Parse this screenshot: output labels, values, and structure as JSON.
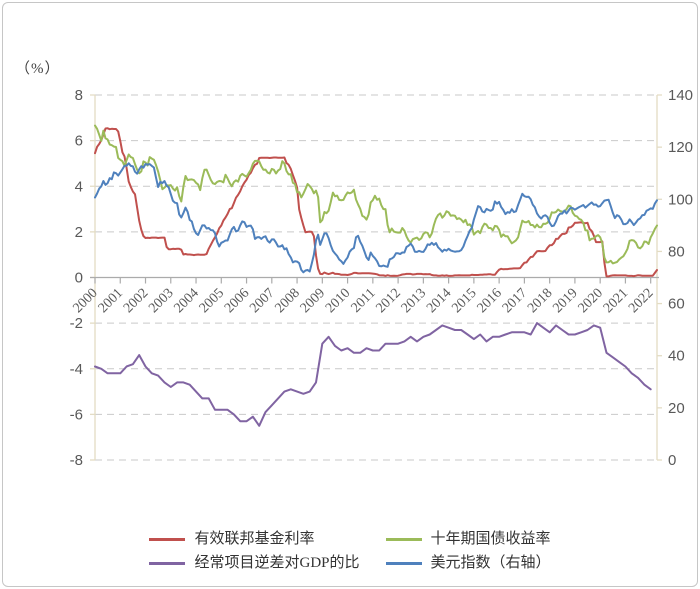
{
  "unit_label": "（%）",
  "chart_data": {
    "type": "line",
    "title": "",
    "ylabel_left": "（%）",
    "grid": "dashed-horizontal",
    "legend_position": "bottom",
    "left_axis": {
      "min": -8,
      "max": 8,
      "ticks": [
        8,
        6,
        4,
        2,
        0,
        -2,
        -4,
        -6,
        -8
      ]
    },
    "right_axis": {
      "min": 0,
      "max": 140,
      "ticks": [
        140,
        120,
        100,
        80,
        60,
        40,
        20,
        0
      ]
    },
    "x_axis": {
      "start_year": 2000,
      "end_year": 2022.25,
      "tick_labels": [
        "2000",
        "2001",
        "2002",
        "2003",
        "2004",
        "2005",
        "2006",
        "2007",
        "2008",
        "2009",
        "2010",
        "2011",
        "2012",
        "2013",
        "2014",
        "2015",
        "2016",
        "2017",
        "2018",
        "2019",
        "2020",
        "2021",
        "2022"
      ]
    },
    "colors": {
      "grid": "#c9c9c9",
      "axis_cream": "#e3dcc4",
      "axis_gray": "#ababab",
      "text": "#595959"
    },
    "series": [
      {
        "name": "有效联邦基金利率",
        "color": "#c0504d",
        "axis": "left",
        "start": 2000,
        "points_per_year": 12,
        "values": [
          5.45,
          5.73,
          5.85,
          6.02,
          6.27,
          6.53,
          6.54,
          6.5,
          6.52,
          6.51,
          6.51,
          6.4,
          5.98,
          5.49,
          5.31,
          4.8,
          4.21,
          3.97,
          3.77,
          3.65,
          3.07,
          2.49,
          2.09,
          1.82,
          1.73,
          1.74,
          1.73,
          1.75,
          1.75,
          1.75,
          1.73,
          1.74,
          1.75,
          1.75,
          1.34,
          1.24,
          1.24,
          1.26,
          1.25,
          1.26,
          1.26,
          1.22,
          1.01,
          1.03,
          1.01,
          1.01,
          1.0,
          0.98,
          1.0,
          1.01,
          1.0,
          1.0,
          1.0,
          1.03,
          1.26,
          1.43,
          1.61,
          1.76,
          1.93,
          2.16,
          2.28,
          2.5,
          2.63,
          2.79,
          3.0,
          3.04,
          3.26,
          3.5,
          3.62,
          3.78,
          4.0,
          4.16,
          4.29,
          4.49,
          4.59,
          4.79,
          4.94,
          4.99,
          5.24,
          5.25,
          5.25,
          5.25,
          5.25,
          5.24,
          5.25,
          5.26,
          5.26,
          5.25,
          5.25,
          5.25,
          5.26,
          5.02,
          4.94,
          4.76,
          4.49,
          4.24,
          3.94,
          2.98,
          2.61,
          2.28,
          1.98,
          2.0,
          2.01,
          2.0,
          1.81,
          0.97,
          0.39,
          0.16,
          0.15,
          0.22,
          0.18,
          0.15,
          0.18,
          0.21,
          0.16,
          0.16,
          0.15,
          0.12,
          0.12,
          0.12,
          0.11,
          0.13,
          0.16,
          0.2,
          0.2,
          0.18,
          0.18,
          0.19,
          0.19,
          0.19,
          0.19,
          0.18,
          0.17,
          0.16,
          0.14,
          0.1,
          0.09,
          0.09,
          0.07,
          0.1,
          0.08,
          0.07,
          0.08,
          0.07,
          0.08,
          0.1,
          0.13,
          0.14,
          0.16,
          0.16,
          0.16,
          0.13,
          0.14,
          0.16,
          0.16,
          0.16,
          0.14,
          0.15,
          0.14,
          0.15,
          0.11,
          0.09,
          0.09,
          0.08,
          0.08,
          0.09,
          0.08,
          0.09,
          0.07,
          0.07,
          0.08,
          0.09,
          0.09,
          0.1,
          0.09,
          0.09,
          0.09,
          0.09,
          0.09,
          0.12,
          0.11,
          0.11,
          0.11,
          0.12,
          0.12,
          0.13,
          0.13,
          0.14,
          0.14,
          0.12,
          0.12,
          0.24,
          0.34,
          0.38,
          0.36,
          0.37,
          0.37,
          0.38,
          0.39,
          0.4,
          0.4,
          0.4,
          0.41,
          0.54,
          0.65,
          0.66,
          0.79,
          0.9,
          0.91,
          1.04,
          1.15,
          1.16,
          1.15,
          1.15,
          1.16,
          1.3,
          1.41,
          1.42,
          1.51,
          1.69,
          1.7,
          1.82,
          1.91,
          1.91,
          1.95,
          2.19,
          2.2,
          2.27,
          2.4,
          2.4,
          2.41,
          2.42,
          2.39,
          2.38,
          2.4,
          2.13,
          2.04,
          1.83,
          1.55,
          1.55,
          1.55,
          1.58,
          0.65,
          0.05,
          0.05,
          0.08,
          0.09,
          0.1,
          0.09,
          0.09,
          0.09,
          0.09,
          0.09,
          0.08,
          0.07,
          0.07,
          0.06,
          0.08,
          0.1,
          0.09,
          0.08,
          0.08,
          0.08,
          0.08,
          0.08,
          0.08,
          0.2,
          0.33
        ]
      },
      {
        "name": "十年期国债收益率",
        "color": "#9bbb59",
        "axis": "left",
        "start": 2000,
        "points_per_year": 12,
        "values": [
          6.66,
          6.52,
          6.26,
          5.99,
          6.44,
          6.1,
          6.05,
          5.83,
          5.8,
          5.74,
          5.72,
          5.24,
          5.16,
          5.1,
          4.89,
          5.14,
          5.39,
          5.28,
          5.24,
          4.97,
          4.73,
          4.57,
          4.65,
          5.09,
          5.04,
          4.91,
          5.28,
          5.21,
          5.16,
          4.93,
          4.65,
          4.26,
          3.87,
          3.94,
          4.05,
          4.03,
          4.05,
          3.9,
          3.81,
          3.96,
          3.57,
          3.33,
          3.98,
          4.45,
          4.27,
          4.29,
          4.3,
          4.27,
          4.15,
          4.08,
          3.83,
          4.35,
          4.72,
          4.73,
          4.5,
          4.28,
          4.13,
          4.1,
          4.19,
          4.23,
          4.22,
          4.17,
          4.5,
          4.34,
          4.14,
          4.0,
          4.18,
          4.26,
          4.2,
          4.46,
          4.54,
          4.47,
          4.42,
          4.57,
          4.72,
          4.99,
          5.11,
          5.11,
          5.09,
          4.88,
          4.72,
          4.73,
          4.6,
          4.56,
          4.76,
          4.72,
          4.56,
          4.69,
          4.75,
          5.1,
          5.0,
          4.67,
          4.52,
          4.53,
          4.15,
          4.1,
          3.74,
          3.74,
          3.51,
          3.68,
          3.88,
          4.1,
          4.01,
          3.89,
          3.69,
          3.81,
          3.53,
          2.42,
          2.52,
          2.87,
          2.82,
          2.93,
          3.29,
          3.72,
          3.56,
          3.59,
          3.4,
          3.39,
          3.4,
          3.59,
          3.73,
          3.69,
          3.73,
          3.85,
          3.42,
          3.2,
          3.01,
          2.7,
          2.65,
          2.54,
          2.76,
          3.29,
          3.39,
          3.58,
          3.41,
          3.46,
          3.17,
          3.0,
          3.0,
          2.3,
          1.98,
          2.15,
          2.01,
          1.98,
          1.97,
          1.97,
          2.17,
          2.05,
          1.8,
          1.62,
          1.53,
          1.68,
          1.72,
          1.75,
          1.65,
          1.72,
          1.91,
          1.98,
          1.96,
          1.76,
          1.93,
          2.3,
          2.58,
          2.74,
          2.81,
          2.62,
          2.72,
          2.9,
          2.86,
          2.71,
          2.72,
          2.71,
          2.56,
          2.6,
          2.54,
          2.42,
          2.53,
          2.3,
          2.33,
          2.21,
          1.88,
          1.98,
          2.04,
          1.94,
          2.2,
          2.36,
          2.32,
          2.17,
          2.17,
          2.07,
          2.26,
          2.24,
          2.09,
          1.78,
          1.89,
          1.81,
          1.81,
          1.64,
          1.5,
          1.56,
          1.63,
          1.76,
          2.14,
          2.49,
          2.43,
          2.42,
          2.48,
          2.3,
          2.3,
          2.19,
          2.32,
          2.21,
          2.2,
          2.36,
          2.35,
          2.4,
          2.58,
          2.86,
          2.84,
          2.87,
          2.98,
          2.91,
          2.89,
          2.89,
          3.0,
          3.15,
          3.12,
          2.83,
          2.71,
          2.68,
          2.57,
          2.53,
          2.4,
          2.07,
          2.06,
          1.63,
          1.7,
          1.71,
          1.81,
          1.86,
          1.76,
          1.5,
          0.87,
          0.66,
          0.67,
          0.73,
          0.62,
          0.65,
          0.68,
          0.79,
          0.87,
          0.93,
          1.08,
          1.26,
          1.61,
          1.64,
          1.62,
          1.52,
          1.32,
          1.28,
          1.37,
          1.58,
          1.56,
          1.47,
          1.76,
          1.93,
          2.13,
          2.28
        ]
      },
      {
        "name": "经常项目逆差对GDP的比",
        "color": "#8064a2",
        "axis": "left",
        "start": 2000,
        "points_per_year": 4,
        "values": [
          -3.9,
          -4.0,
          -4.2,
          -4.2,
          -4.2,
          -3.9,
          -3.8,
          -3.4,
          -3.9,
          -4.2,
          -4.3,
          -4.6,
          -4.8,
          -4.6,
          -4.6,
          -4.7,
          -5.0,
          -5.3,
          -5.3,
          -5.8,
          -5.8,
          -5.8,
          -6.0,
          -6.3,
          -6.3,
          -6.1,
          -6.5,
          -5.9,
          -5.6,
          -5.3,
          -5.0,
          -4.9,
          -5.0,
          -5.1,
          -5.0,
          -4.6,
          -2.9,
          -2.6,
          -3.0,
          -3.2,
          -3.1,
          -3.3,
          -3.3,
          -3.1,
          -3.2,
          -3.2,
          -2.9,
          -2.9,
          -2.9,
          -2.8,
          -2.6,
          -2.8,
          -2.6,
          -2.5,
          -2.3,
          -2.1,
          -2.2,
          -2.3,
          -2.3,
          -2.5,
          -2.7,
          -2.5,
          -2.8,
          -2.6,
          -2.6,
          -2.5,
          -2.4,
          -2.4,
          -2.4,
          -2.5,
          -2.0,
          -2.2,
          -2.4,
          -2.1,
          -2.3,
          -2.5,
          -2.5,
          -2.4,
          -2.3,
          -2.1,
          -2.2,
          -3.3,
          -3.5,
          -3.7,
          -3.9,
          -4.2,
          -4.4,
          -4.7,
          -4.9
        ]
      },
      {
        "name": "美元指数（右轴）",
        "color": "#4f81bd",
        "axis": "right",
        "start": 2000,
        "points_per_year": 12,
        "values": [
          100.7,
          102.2,
          104.1,
          105.0,
          107.0,
          105.5,
          106.2,
          108.1,
          107.7,
          110.3,
          110.0,
          109.1,
          110.3,
          111.5,
          112.9,
          112.9,
          113.8,
          112.8,
          112.6,
          110.6,
          109.8,
          111.5,
          112.7,
          112.1,
          113.5,
          113.3,
          113.5,
          112.8,
          112.2,
          108.3,
          104.7,
          106.7,
          106.2,
          107.0,
          105.2,
          104.6,
          102.0,
          99.4,
          98.7,
          98.5,
          94.2,
          93.0,
          94.7,
          96.8,
          95.2,
          92.1,
          91.5,
          88.6,
          87.0,
          86.3,
          88.2,
          90.0,
          90.0,
          88.8,
          89.0,
          88.2,
          88.1,
          87.0,
          83.8,
          81.9,
          83.3,
          83.7,
          84.2,
          84.2,
          86.4,
          88.5,
          89.4,
          87.7,
          88.0,
          90.0,
          91.5,
          91.2,
          89.4,
          89.8,
          89.9,
          88.5,
          84.8,
          85.4,
          85.5,
          84.8,
          85.5,
          85.8,
          84.1,
          83.4,
          84.6,
          84.6,
          83.4,
          81.9,
          81.9,
          82.4,
          80.8,
          81.2,
          79.0,
          77.7,
          75.8,
          76.2,
          76.1,
          75.5,
          72.9,
          72.0,
          72.7,
          72.9,
          72.3,
          75.4,
          78.8,
          84.2,
          86.4,
          82.5,
          84.7,
          86.9,
          86.9,
          85.1,
          82.4,
          80.2,
          79.2,
          78.3,
          76.9,
          76.2,
          75.2,
          76.6,
          77.7,
          79.9,
          80.8,
          81.3,
          85.4,
          86.0,
          83.7,
          82.2,
          80.0,
          77.7,
          76.7,
          79.6,
          78.3,
          77.4,
          76.2,
          74.4,
          74.3,
          74.6,
          74.3,
          74.1,
          77.0,
          77.3,
          77.9,
          79.3,
          79.3,
          79.0,
          79.6,
          79.6,
          81.7,
          82.2,
          83.0,
          81.9,
          79.9,
          79.8,
          80.2,
          79.9,
          79.8,
          81.0,
          82.7,
          82.5,
          83.3,
          82.5,
          83.2,
          81.6,
          80.8,
          79.9,
          80.7,
          80.3,
          81.0,
          80.4,
          80.1,
          79.9,
          80.0,
          80.1,
          80.5,
          81.9,
          84.1,
          85.9,
          87.9,
          89.0,
          92.3,
          94.8,
          97.4,
          97.0,
          95.3,
          95.0,
          96.3,
          95.9,
          95.6,
          96.1,
          99.2,
          98.3,
          99.0,
          97.0,
          95.9,
          94.3,
          95.1,
          94.8,
          96.2,
          95.1,
          95.4,
          97.8,
          99.9,
          102.1,
          101.2,
          100.9,
          101.0,
          100.0,
          97.9,
          96.9,
          94.6,
          93.4,
          92.6,
          93.6,
          93.9,
          93.2,
          91.0,
          89.7,
          89.9,
          91.5,
          93.6,
          94.5,
          94.5,
          95.7,
          94.6,
          95.7,
          96.8,
          96.6,
          96.0,
          96.5,
          97.0,
          97.4,
          97.8,
          96.8,
          97.5,
          98.2,
          98.8,
          97.9,
          98.0,
          97.2,
          97.4,
          98.5,
          99.5,
          99.7,
          99.8,
          97.4,
          94.8,
          92.8,
          93.9,
          93.5,
          92.3,
          90.5,
          90.5,
          90.9,
          92.3,
          91.3,
          90.1,
          91.1,
          92.2,
          92.7,
          93.9,
          94.0,
          95.6,
          96.0,
          96.5,
          96.3,
          98.4,
          99.6
        ]
      }
    ]
  }
}
